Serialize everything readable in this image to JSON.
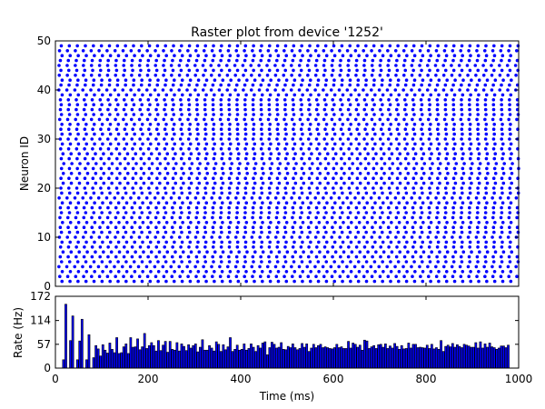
{
  "chart_data": [
    {
      "type": "scatter",
      "title": "Raster plot from device '1252'",
      "ylabel": "Neuron ID",
      "xlim": [
        0,
        1000
      ],
      "ylim": [
        0,
        50
      ],
      "yticks": [
        "0",
        "10",
        "20",
        "30",
        "40",
        "50"
      ],
      "marker_color": "#0000ff",
      "neurons": {
        "first_id": 1,
        "last_id": 49
      },
      "spike_period_ms": 17.3,
      "first_spike_ms": [
        14.2,
        9.5,
        14.8,
        7.6,
        13.3,
        10.4,
        16.5,
        11.2,
        14.2,
        8.7,
        13.0,
        10.5,
        15.3,
        9.8,
        12.9,
        10.6,
        14.9,
        8.1,
        13.5,
        11.8,
        16.8,
        12.0,
        17.1,
        13.2,
        18.1,
        12.6,
        16.3,
        11.4,
        15.0,
        10.6,
        14.2,
        11.7,
        14.0,
        9.4,
        13.1,
        10.8,
        12.6,
        10.8,
        14.6,
        7.5,
        12.0,
        14.5,
        8.4,
        11.8,
        7.9,
        10.7,
        14.4,
        8.9,
        12.7
      ],
      "drift_ms": [
        0.0,
        -0.8,
        0.9,
        -1.3,
        1.1,
        -0.6,
        0.7,
        -1.0,
        1.2,
        -0.4,
        0.5,
        -1.1,
        0.8,
        -0.7,
        1.0,
        -0.9,
        0.6,
        -1.2,
        0.4,
        -0.5,
        1.3,
        -0.3,
        0.9,
        -1.0,
        0.7,
        -0.8,
        1.1,
        -0.6,
        0.3,
        -1.2,
        1.0,
        -0.4,
        0.8,
        -0.9,
        0.5,
        -1.1,
        1.2,
        -0.7,
        0.6,
        -0.3,
        0.9,
        -1.0,
        0.4,
        -0.8,
        1.1,
        -0.5,
        0.7,
        -1.2,
        0.2
      ]
    },
    {
      "type": "bar",
      "xlabel": "Time (ms)",
      "ylabel": "Rate (Hz)",
      "xlim": [
        0,
        1000
      ],
      "ylim": [
        0,
        172
      ],
      "xticks": [
        "0",
        "200",
        "400",
        "600",
        "800",
        "1000"
      ],
      "yticks": [
        "0",
        "57",
        "114",
        "172"
      ],
      "bar_color": "#0000ff",
      "bin_width_ms": 5,
      "bin_start_ms": 0,
      "values": [
        0,
        0,
        0,
        20,
        153,
        0,
        66,
        125,
        0,
        20,
        65,
        117,
        0,
        20,
        80,
        0,
        25,
        54,
        46,
        29,
        56,
        43,
        36,
        60,
        45,
        37,
        73,
        35,
        37,
        51,
        58,
        35,
        73,
        50,
        51,
        70,
        44,
        51,
        83,
        47,
        54,
        61,
        54,
        41,
        66,
        42,
        55,
        64,
        38,
        64,
        45,
        43,
        61,
        41,
        58,
        52,
        42,
        56,
        48,
        54,
        58,
        39,
        50,
        68,
        43,
        43,
        54,
        48,
        41,
        63,
        57,
        40,
        56,
        44,
        51,
        73,
        40,
        45,
        55,
        43,
        45,
        58,
        43,
        47,
        58,
        50,
        40,
        54,
        48,
        60,
        63,
        32,
        49,
        62,
        57,
        48,
        50,
        61,
        45,
        44,
        52,
        49,
        58,
        49,
        44,
        47,
        59,
        50,
        58,
        40,
        48,
        57,
        49,
        54,
        57,
        49,
        51,
        49,
        47,
        46,
        49,
        57,
        49,
        51,
        47,
        47,
        64,
        48,
        60,
        57,
        50,
        55,
        43,
        67,
        65,
        47,
        51,
        54,
        47,
        56,
        57,
        50,
        58,
        47,
        53,
        48,
        59,
        52,
        45,
        54,
        46,
        47,
        60,
        48,
        57,
        57,
        49,
        50,
        49,
        48,
        55,
        47,
        57,
        46,
        49,
        45,
        66,
        40,
        52,
        55,
        51,
        59,
        50,
        56,
        52,
        49,
        57,
        55,
        53,
        50,
        50,
        61,
        48,
        63,
        48,
        58,
        50,
        60,
        51,
        49,
        45,
        48,
        53,
        53,
        49,
        55
      ]
    }
  ]
}
